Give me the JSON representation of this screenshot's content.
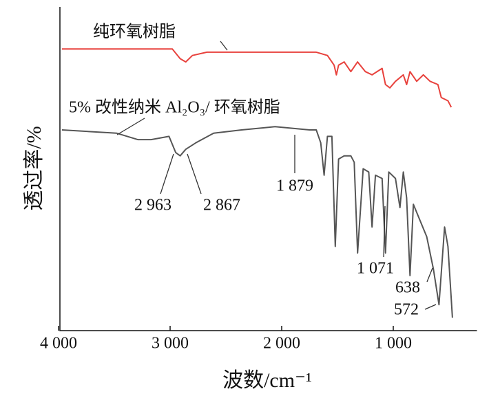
{
  "chart_data": {
    "type": "line",
    "xlabel": "波数/cm⁻¹",
    "ylabel": "透过率/%",
    "xlim": [
      4000,
      250
    ],
    "ylim": [
      0,
      100
    ],
    "xticks": [
      {
        "value": 4000,
        "label": "4 000"
      },
      {
        "value": 3000,
        "label": "3 000"
      },
      {
        "value": 2000,
        "label": "2 000"
      },
      {
        "value": 1000,
        "label": "1 000"
      }
    ],
    "series": [
      {
        "name": "纯环氧树脂",
        "color": "#e8413c",
        "x": [
          3970,
          2980,
          2910,
          2860,
          2800,
          2670,
          2490,
          2060,
          1690,
          1590,
          1530,
          1510,
          1490,
          1440,
          1380,
          1320,
          1250,
          1190,
          1100,
          1070,
          1030,
          980,
          910,
          880,
          850,
          790,
          730,
          670,
          600,
          570,
          510,
          480
        ],
        "values": [
          87,
          87,
          84,
          83,
          85,
          86,
          86,
          86,
          86,
          85,
          82,
          79,
          82,
          83,
          80,
          83,
          80,
          79,
          81,
          76,
          75,
          77,
          79,
          76,
          80,
          77,
          79,
          77,
          76,
          72,
          71,
          69
        ]
      },
      {
        "name": "5% 改性纳米 Al₂O₃/ 环氧树脂",
        "color": "#555555",
        "x": [
          3970,
          3480,
          3290,
          3170,
          3010,
          2950,
          2910,
          2860,
          2770,
          2610,
          2360,
          2060,
          1750,
          1690,
          1650,
          1620,
          1590,
          1550,
          1520,
          1490,
          1440,
          1380,
          1350,
          1320,
          1270,
          1220,
          1190,
          1160,
          1100,
          1070,
          1040,
          980,
          940,
          910,
          880,
          850,
          820,
          760,
          700,
          640,
          590,
          540,
          510,
          470
        ],
        "values": [
          62,
          61,
          59,
          59,
          60,
          55,
          54,
          56,
          58,
          61,
          62,
          63,
          62,
          62,
          58,
          48,
          60,
          60,
          26,
          53,
          54,
          54,
          52,
          24,
          50,
          49,
          32,
          48,
          47,
          24,
          49,
          47,
          38,
          49,
          41,
          17,
          39,
          34,
          29,
          19,
          8,
          32,
          26,
          4
        ]
      }
    ],
    "annotations": [
      {
        "label": "2 963",
        "value": 2963
      },
      {
        "label": "2 867",
        "value": 2867
      },
      {
        "label": "1 879",
        "value": 1879
      },
      {
        "label": "1 071",
        "value": 1071
      },
      {
        "label": "638",
        "value": 638
      },
      {
        "label": "572",
        "value": 572
      }
    ]
  }
}
